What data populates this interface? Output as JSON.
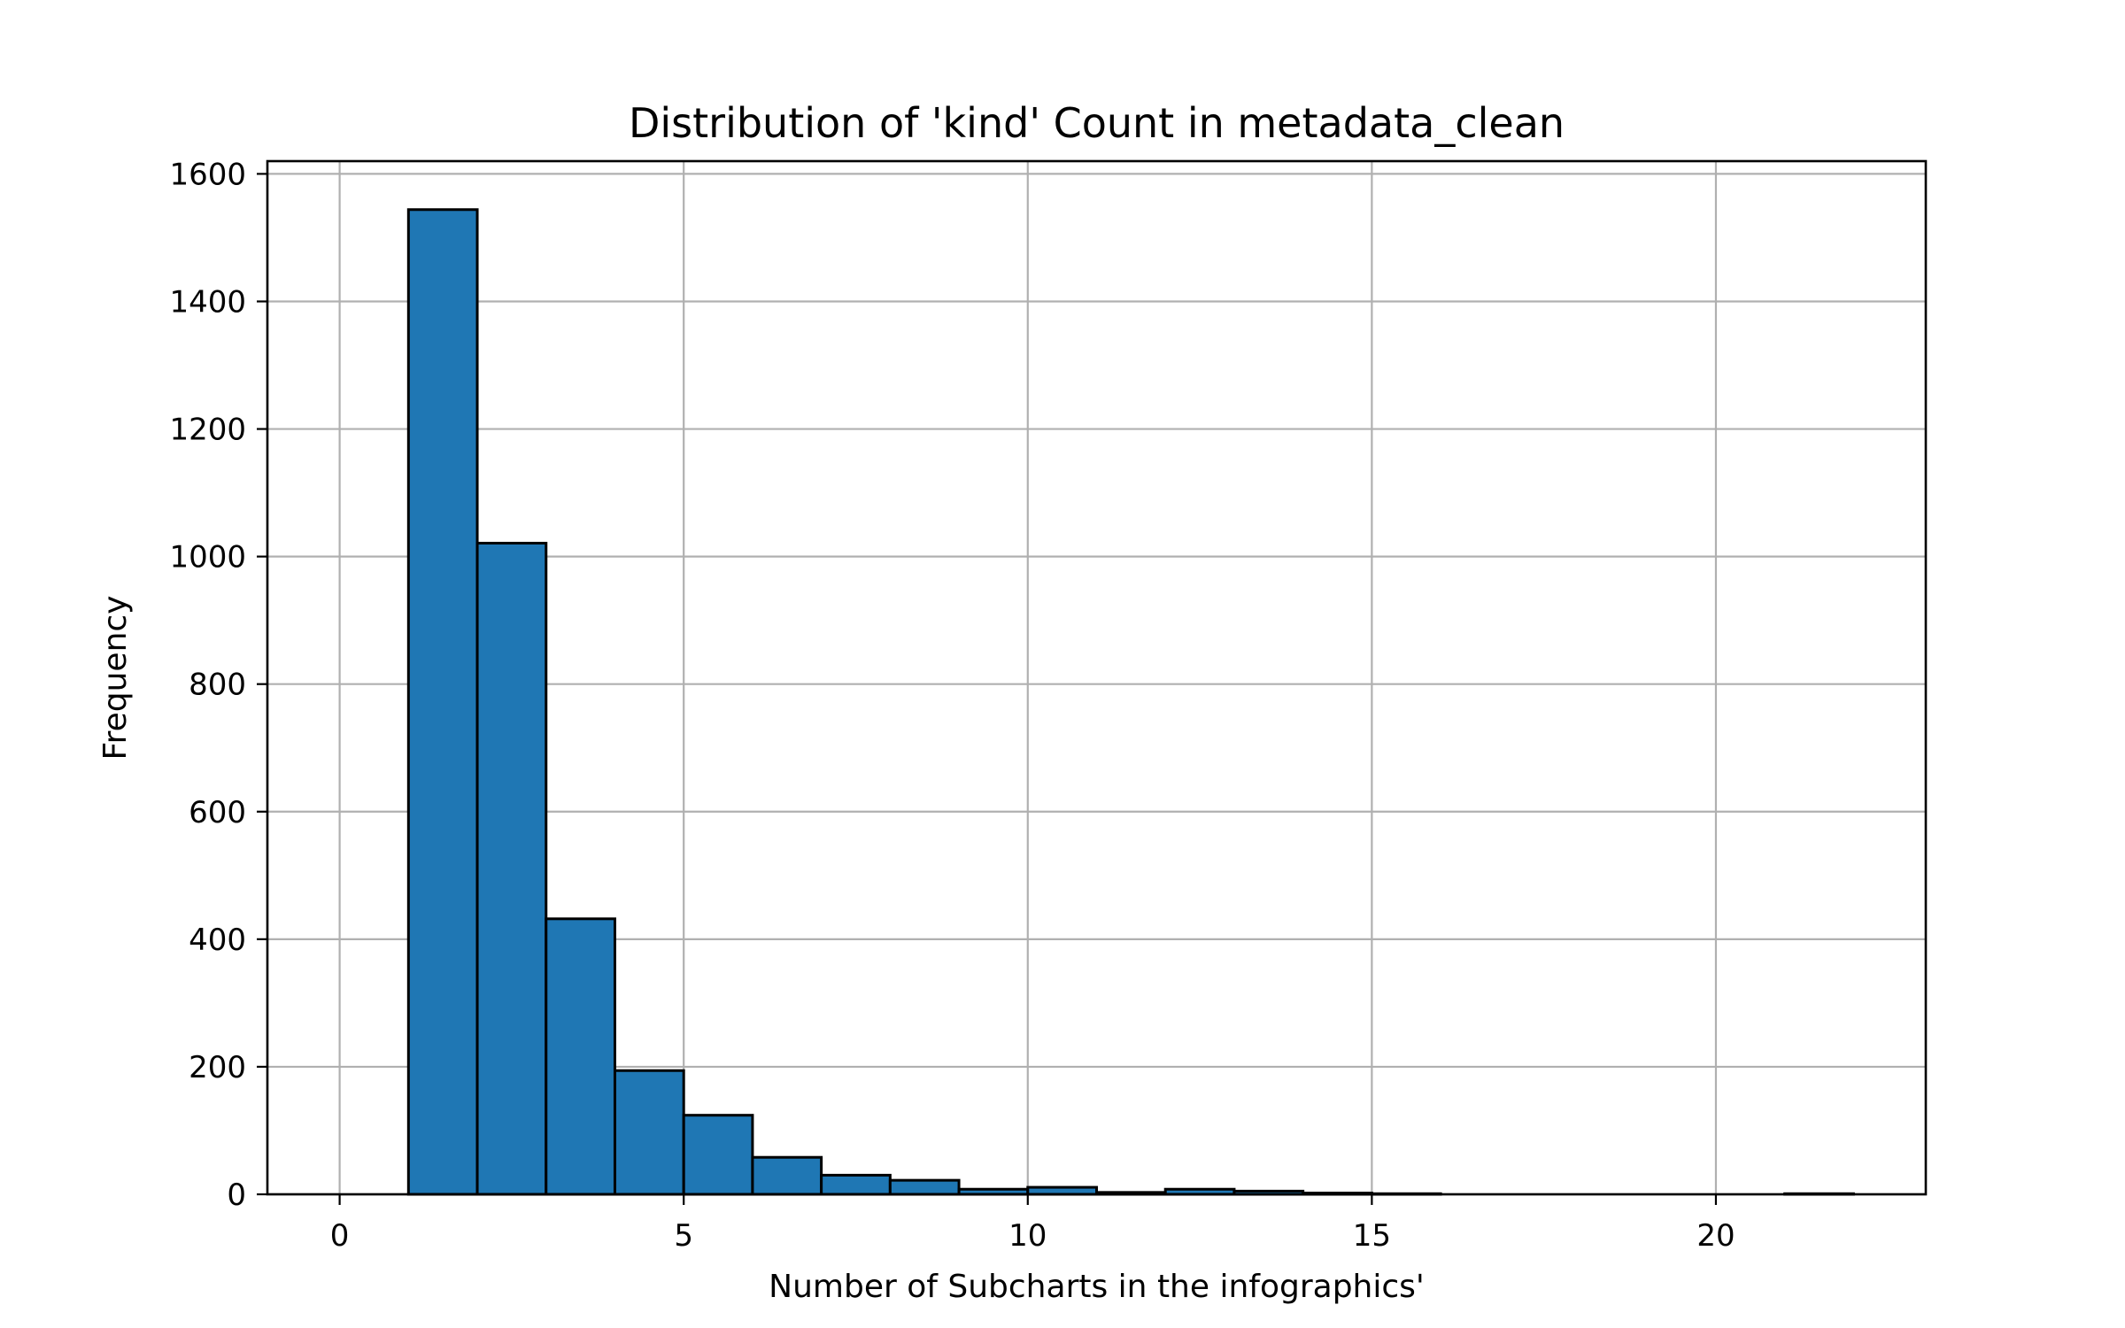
{
  "chart_data": {
    "type": "bar",
    "title": "Distribution of 'kind' Count in metadata_clean",
    "xlabel": "Number of Subcharts in the infographics'",
    "ylabel": "Frequency",
    "xlim": [
      -1.05,
      23.05
    ],
    "ylim": [
      0,
      1620
    ],
    "x_ticks": [
      0,
      5,
      10,
      15,
      20
    ],
    "y_ticks": [
      0,
      200,
      400,
      600,
      800,
      1000,
      1200,
      1400,
      1600
    ],
    "grid": true,
    "bar_color": "#1f77b4",
    "edge_color": "#000000",
    "bins": [
      {
        "start": 0,
        "end": 1,
        "value": 0
      },
      {
        "start": 1,
        "end": 2,
        "value": 1544
      },
      {
        "start": 2,
        "end": 3,
        "value": 1021
      },
      {
        "start": 3,
        "end": 4,
        "value": 432
      },
      {
        "start": 4,
        "end": 5,
        "value": 194
      },
      {
        "start": 5,
        "end": 6,
        "value": 124
      },
      {
        "start": 6,
        "end": 7,
        "value": 58
      },
      {
        "start": 7,
        "end": 8,
        "value": 30
      },
      {
        "start": 8,
        "end": 9,
        "value": 22
      },
      {
        "start": 9,
        "end": 10,
        "value": 8
      },
      {
        "start": 10,
        "end": 11,
        "value": 11
      },
      {
        "start": 11,
        "end": 12,
        "value": 3
      },
      {
        "start": 12,
        "end": 13,
        "value": 8
      },
      {
        "start": 13,
        "end": 14,
        "value": 5
      },
      {
        "start": 14,
        "end": 15,
        "value": 2
      },
      {
        "start": 15,
        "end": 16,
        "value": 1
      },
      {
        "start": 16,
        "end": 17,
        "value": 0
      },
      {
        "start": 17,
        "end": 18,
        "value": 0
      },
      {
        "start": 18,
        "end": 19,
        "value": 0
      },
      {
        "start": 19,
        "end": 20,
        "value": 0
      },
      {
        "start": 20,
        "end": 21,
        "value": 0
      },
      {
        "start": 21,
        "end": 22,
        "value": 1
      }
    ]
  }
}
